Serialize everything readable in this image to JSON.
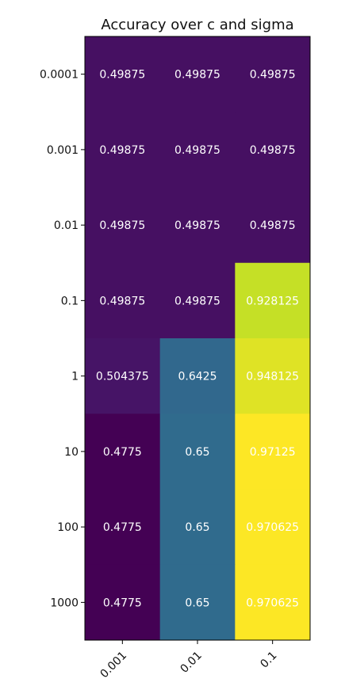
{
  "chart_data": {
    "type": "heatmap",
    "title": "Accuracy over c and sigma",
    "xlabel": "",
    "ylabel": "",
    "x_categories": [
      "0.001",
      "0.01",
      "0.1"
    ],
    "y_categories": [
      "0.0001",
      "0.001",
      "0.01",
      "0.1",
      "1",
      "10",
      "100",
      "1000"
    ],
    "values": [
      [
        0.49875,
        0.49875,
        0.49875
      ],
      [
        0.49875,
        0.49875,
        0.49875
      ],
      [
        0.49875,
        0.49875,
        0.49875
      ],
      [
        0.49875,
        0.49875,
        0.928125
      ],
      [
        0.504375,
        0.6425,
        0.948125
      ],
      [
        0.4775,
        0.65,
        0.97125
      ],
      [
        0.4775,
        0.65,
        0.970625
      ],
      [
        0.4775,
        0.65,
        0.970625
      ]
    ],
    "colormap": "viridis",
    "value_range": [
      0.4775,
      0.97125
    ],
    "annotation_color": "#ffffff",
    "x_tick_rotation": "45 degrees"
  }
}
